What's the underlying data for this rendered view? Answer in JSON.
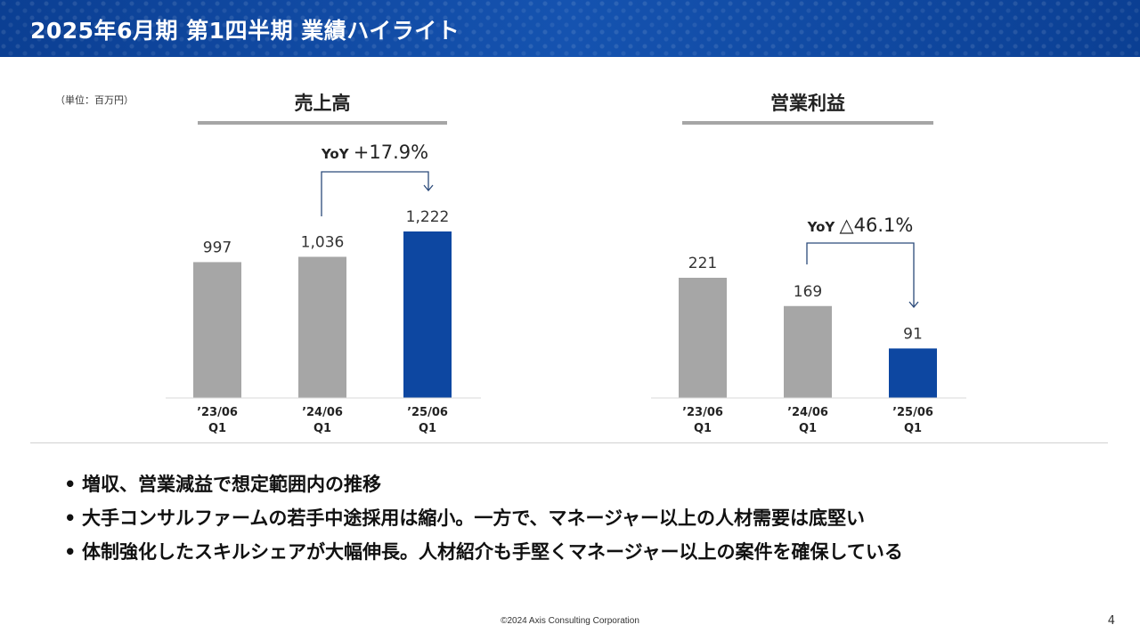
{
  "header": {
    "title": "2025年6月期 第1四半期 業績ハイライト"
  },
  "unit_label": "（単位：百万円）",
  "colors": {
    "accent": "#0d47a1",
    "bar_prior": "#a6a6a6",
    "bar_current": "#0d47a1"
  },
  "chart_data": [
    {
      "type": "bar",
      "title": "売上高",
      "categories": [
        "’23/06\nQ1",
        "’24/06\nQ1",
        "’25/06\nQ1"
      ],
      "values": [
        997,
        1036,
        1222
      ],
      "value_labels": [
        "997",
        "1,036",
        "1,222"
      ],
      "annotation": "YoY +17.9%",
      "annotation_from": 1,
      "annotation_to": 2
    },
    {
      "type": "bar",
      "title": "営業利益",
      "categories": [
        "’23/06\nQ1",
        "’24/06\nQ1",
        "’25/06\nQ1"
      ],
      "values": [
        221,
        169,
        91
      ],
      "value_labels": [
        "221",
        "169",
        "91"
      ],
      "annotation": "YoY △46.1%",
      "annotation_from": 1,
      "annotation_to": 2
    }
  ],
  "bullets": [
    "増収、営業減益で想定範囲内の推移",
    "大手コンサルファームの若手中途採用は縮小。一方で、マネージャー以上の人材需要は底堅い",
    "体制強化したスキルシェアが大幅伸長。人材紹介も手堅くマネージャー以上の案件を確保している"
  ],
  "bullet_mark": "•",
  "footer": {
    "copyright": "©2024 Axis Consulting Corporation",
    "page_number": "4"
  }
}
